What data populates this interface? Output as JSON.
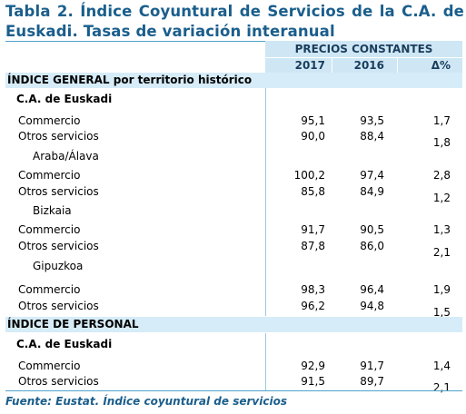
{
  "title": {
    "line1": "Tabla 2. Índice Coyuntural de Servicios de la C.A. de",
    "line2": "Euskadi. Tasas de variación interanual"
  },
  "header": {
    "group": "PRECIOS CONSTANTES",
    "columns": [
      "2017",
      "2016",
      "Δ%"
    ]
  },
  "sections": [
    {
      "label": "ÍNDICE GENERAL por territorio histórico",
      "sub": "C.A. de Euskadi",
      "blocks": [
        {
          "region": "",
          "rows": [
            {
              "label": "Commercio",
              "v2017": "95,1",
              "v2016": "93,5",
              "delta": "1,7"
            },
            {
              "label": "Otros servicios",
              "v2017": "90,0",
              "v2016": "88,4",
              "delta": "1,8"
            }
          ]
        },
        {
          "region": "Araba/Álava",
          "rows": [
            {
              "label": "Commercio",
              "v2017": "100,2",
              "v2016": "97,4",
              "delta": "2,8"
            },
            {
              "label": "Otros servicios",
              "v2017": "85,8",
              "v2016": "84,9",
              "delta": "1,2"
            }
          ]
        },
        {
          "region": "Bizkaia",
          "rows": [
            {
              "label": "Commercio",
              "v2017": "91,7",
              "v2016": "90,5",
              "delta": "1,3"
            },
            {
              "label": "Otros servicios",
              "v2017": "87,8",
              "v2016": "86,0",
              "delta": "2,1"
            }
          ]
        },
        {
          "region": "Gipuzkoa",
          "rows": [
            {
              "label": "Commercio",
              "v2017": "98,3",
              "v2016": "96,4",
              "delta": "1,9"
            },
            {
              "label": "Otros servicios",
              "v2017": "96,2",
              "v2016": "94,8",
              "delta": "1,5"
            }
          ]
        }
      ]
    },
    {
      "label": "ÍNDICE DE PERSONAL",
      "sub": "C.A. de Euskadi",
      "blocks": [
        {
          "region": "",
          "rows": [
            {
              "label": "Commercio",
              "v2017": "92,9",
              "v2016": "91,7",
              "delta": "1,4"
            },
            {
              "label": "Otros servicios",
              "v2017": "91,5",
              "v2016": "89,7",
              "delta": "2,1"
            }
          ]
        }
      ]
    }
  ],
  "source": "Fuente: Eustat. Índice coyuntural de servicios",
  "colors": {
    "title": "#1a5e8c",
    "band": "#d6ecf8",
    "header": "#cfe7f5",
    "rule": "#4fa3c9"
  }
}
